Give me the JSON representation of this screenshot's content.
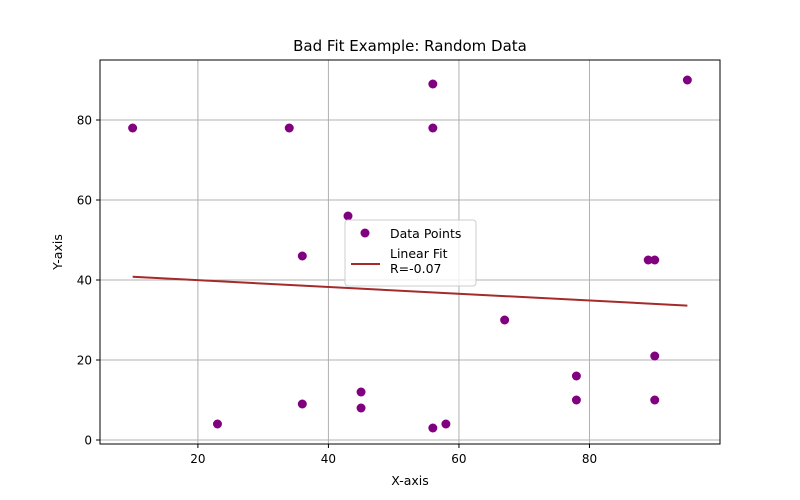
{
  "chart_data": {
    "type": "scatter",
    "title": "Bad Fit Example: Random Data",
    "xlabel": "X-axis",
    "ylabel": "Y-axis",
    "xlim": [
      5,
      100
    ],
    "ylim": [
      -1,
      95
    ],
    "xticks": [
      20,
      40,
      60,
      80
    ],
    "yticks": [
      0,
      20,
      40,
      60,
      80
    ],
    "grid": true,
    "legend_position": "center",
    "series": [
      {
        "name": "Data Points",
        "kind": "scatter",
        "color": "#800080",
        "points": [
          {
            "x": 10,
            "y": 78
          },
          {
            "x": 23,
            "y": 4
          },
          {
            "x": 34,
            "y": 78
          },
          {
            "x": 36,
            "y": 46
          },
          {
            "x": 36,
            "y": 9
          },
          {
            "x": 43,
            "y": 56
          },
          {
            "x": 45,
            "y": 12
          },
          {
            "x": 45,
            "y": 8
          },
          {
            "x": 56,
            "y": 89
          },
          {
            "x": 56,
            "y": 78
          },
          {
            "x": 56,
            "y": 3
          },
          {
            "x": 58,
            "y": 4
          },
          {
            "x": 67,
            "y": 30
          },
          {
            "x": 78,
            "y": 16
          },
          {
            "x": 78,
            "y": 10
          },
          {
            "x": 89,
            "y": 45
          },
          {
            "x": 90,
            "y": 45
          },
          {
            "x": 90,
            "y": 21
          },
          {
            "x": 90,
            "y": 10
          },
          {
            "x": 95,
            "y": 90
          }
        ]
      },
      {
        "name": "Linear Fit\nR=-0.07",
        "kind": "line",
        "color": "#a52a2a",
        "points": [
          {
            "x": 10,
            "y": 40.8
          },
          {
            "x": 95,
            "y": 33.6
          }
        ]
      }
    ]
  }
}
